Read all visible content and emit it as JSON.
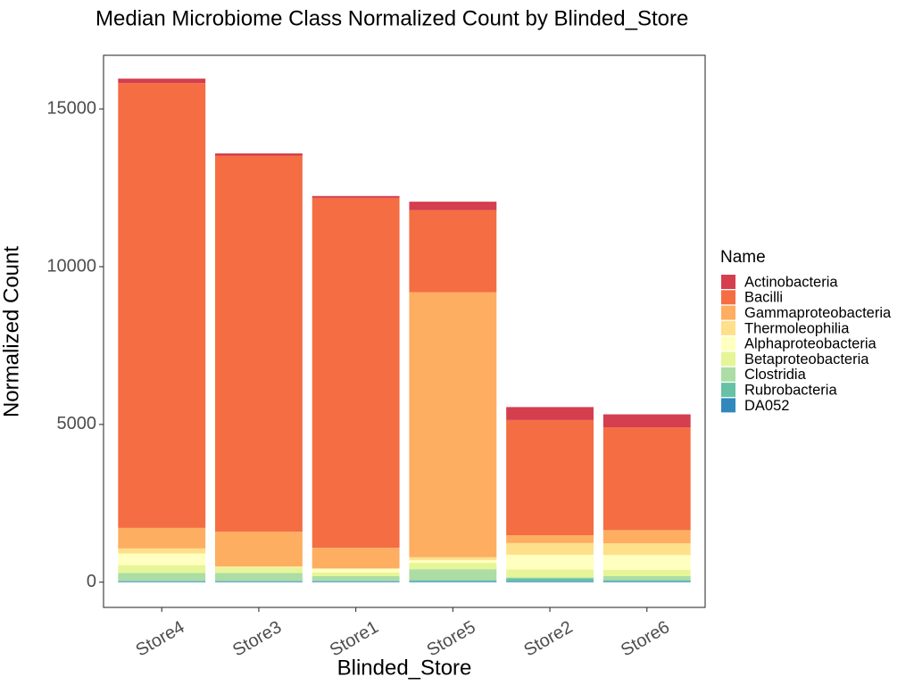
{
  "chart_data": {
    "type": "bar",
    "stacked": true,
    "title": "Median Microbiome Class Normalized Count by Blinded_Store",
    "xlabel": "Blinded_Store",
    "ylabel": "Normalized Count",
    "ylim": [
      -800,
      16700
    ],
    "yticks": [
      0,
      5000,
      10000,
      15000
    ],
    "grid": false,
    "legend": {
      "title": "Name",
      "position": "right"
    },
    "categories": [
      "Store4",
      "Store3",
      "Store1",
      "Store5",
      "Store2",
      "Store6"
    ],
    "series": [
      {
        "name": "DA052",
        "color": "#3288BD",
        "values": [
          30,
          30,
          30,
          30,
          30,
          30
        ]
      },
      {
        "name": "Rubrobacteria",
        "color": "#66C2A5",
        "values": [
          10,
          10,
          10,
          30,
          90,
          30
        ]
      },
      {
        "name": "Clostridia",
        "color": "#ABDDA4",
        "values": [
          250,
          250,
          150,
          350,
          30,
          130
        ]
      },
      {
        "name": "Betaproteobacteria",
        "color": "#E6F598",
        "values": [
          250,
          180,
          120,
          200,
          250,
          200
        ]
      },
      {
        "name": "Alphaproteobacteria",
        "color": "#FFFFBF",
        "values": [
          370,
          10,
          110,
          90,
          470,
          470
        ]
      },
      {
        "name": "Thermoleophilia",
        "color": "#FEE08B",
        "values": [
          160,
          20,
          20,
          90,
          370,
          370
        ]
      },
      {
        "name": "Gammaproteobacteria",
        "color": "#FDAE61",
        "values": [
          650,
          1100,
          650,
          8400,
          250,
          420
        ]
      },
      {
        "name": "Bacilli",
        "color": "#F46D43",
        "values": [
          14100,
          11920,
          11090,
          2600,
          3650,
          3260
        ]
      },
      {
        "name": "Actinobacteria",
        "color": "#D53E4F",
        "values": [
          140,
          70,
          60,
          270,
          410,
          410
        ]
      }
    ]
  }
}
